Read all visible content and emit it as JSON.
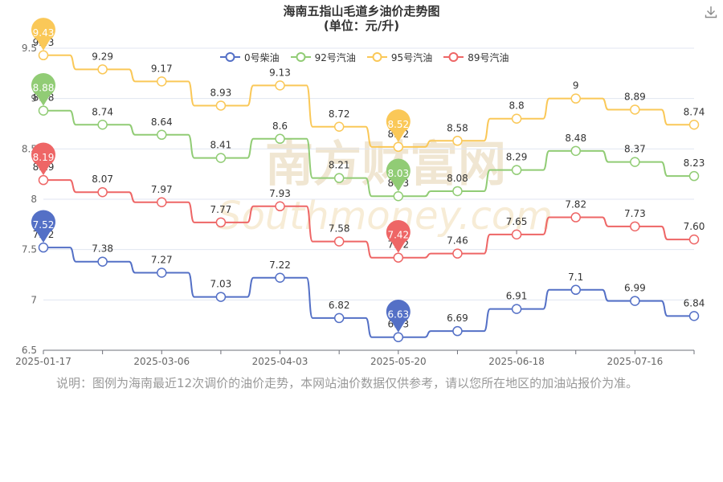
{
  "header": {
    "title": "海南五指山毛道乡油价走势图",
    "subtitle": "(单位：元/升)"
  },
  "toolbar": {
    "download_icon": "download-icon"
  },
  "watermark": {
    "text_cn": "南方财富网",
    "text_en": "Southmoney.com"
  },
  "note": "说明：图例为海南最近12次调价的油价走势，本网站油价数据仅供参考，请以您所在地区的加油站报价为准。",
  "chart_data": {
    "type": "line",
    "x": [
      "2025-01-17",
      "",
      "2025-03-06",
      "",
      "2025-04-03",
      "",
      "2025-05-20",
      "",
      "2025-06-18",
      "",
      "2025-07-16",
      ""
    ],
    "x_tick_labels": [
      "2025-01-17",
      "2025-03-06",
      "2025-04-03",
      "2025-05-20",
      "2025-06-18",
      "2025-07-16"
    ],
    "y_ticks": [
      "6.5",
      "7",
      "7.5",
      "8",
      "8.5",
      "9",
      "9.5"
    ],
    "ylim": [
      6.5,
      9.5
    ],
    "legend_position": "top",
    "series": [
      {
        "name": "0号柴油",
        "color": "#5470c6",
        "values": [
          7.52,
          7.38,
          7.27,
          7.03,
          7.22,
          6.82,
          6.63,
          6.69,
          6.91,
          7.1,
          6.99,
          6.84
        ],
        "labels": [
          "7.52",
          "7.38",
          "7.27",
          "7.03",
          "7.22",
          "6.82",
          "6.63",
          "6.69",
          "6.91",
          "7.1",
          "6.99",
          "6.84"
        ],
        "max_pin": "7.52",
        "min_pin": "6.63"
      },
      {
        "name": "92号汽油",
        "color": "#91cc75",
        "values": [
          8.88,
          8.74,
          8.64,
          8.41,
          8.6,
          8.21,
          8.03,
          8.08,
          8.29,
          8.48,
          8.37,
          8.23
        ],
        "labels": [
          "8.88",
          "8.74",
          "8.64",
          "8.41",
          "8.6",
          "8.21",
          "8.03",
          "8.08",
          "8.29",
          "8.48",
          "8.37",
          "8.23"
        ],
        "max_pin": "8.88",
        "min_pin": "8.03"
      },
      {
        "name": "95号汽油",
        "color": "#fac858",
        "values": [
          9.43,
          9.29,
          9.17,
          8.93,
          9.13,
          8.72,
          8.52,
          8.58,
          8.8,
          9.0,
          8.89,
          8.74
        ],
        "labels": [
          "9.43",
          "9.29",
          "9.17",
          "8.93",
          "9.13",
          "8.72",
          "8.52",
          "8.58",
          "8.8",
          "9",
          "8.89",
          "8.74"
        ],
        "max_pin": "9.43",
        "min_pin": "8.52"
      },
      {
        "name": "89号汽油",
        "color": "#ee6666",
        "values": [
          8.19,
          8.07,
          7.97,
          7.77,
          7.93,
          7.58,
          7.42,
          7.46,
          7.65,
          7.82,
          7.73,
          7.6
        ],
        "labels": [
          "8.19",
          "8.07",
          "7.97",
          "7.77",
          "7.93",
          "7.58",
          "7.42",
          "7.46",
          "7.65",
          "7.82",
          "7.73",
          "7.60"
        ],
        "max_pin": "8.19",
        "min_pin": "7.42"
      }
    ]
  }
}
